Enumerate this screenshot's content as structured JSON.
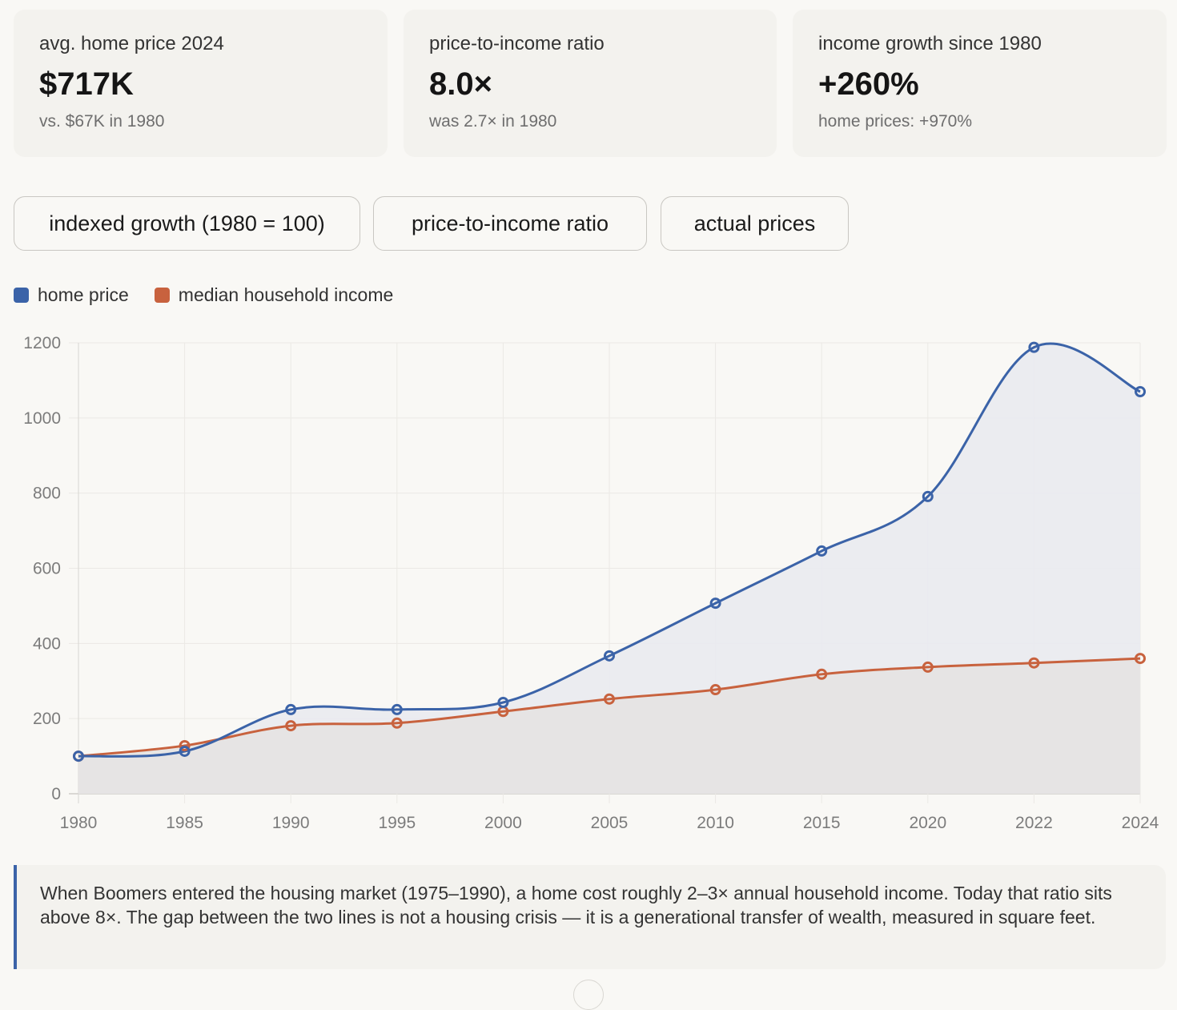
{
  "stats": [
    {
      "label": "avg. home price 2024",
      "value": "$717K",
      "sub": "vs. $67K in 1980"
    },
    {
      "label": "price-to-income ratio",
      "value": "8.0×",
      "sub": "was 2.7× in 1980"
    },
    {
      "label": "income growth since 1980",
      "value": "+260%",
      "sub": "home prices: +970%"
    }
  ],
  "tabs": [
    {
      "label": "indexed growth (1980 = 100)"
    },
    {
      "label": "price-to-income ratio"
    },
    {
      "label": "actual prices"
    }
  ],
  "legend": [
    {
      "label": "home price",
      "color": "#3b63a8"
    },
    {
      "label": "median household income",
      "color": "#c8623e"
    }
  ],
  "note": "When Boomers entered the housing market (1975–1990), a home cost roughly 2–3× annual household income. Today that ratio sits above 8×. The gap between the two lines is not a housing crisis — it is a generational transfer of wealth, measured in square feet.",
  "chart_data": {
    "type": "area",
    "title": "",
    "xlabel": "",
    "ylabel": "",
    "categories": [
      "1980",
      "1985",
      "1990",
      "1995",
      "2000",
      "2005",
      "2010",
      "2015",
      "2020",
      "2022",
      "2024"
    ],
    "ylim": [
      0,
      1200
    ],
    "yticks": [
      0,
      200,
      400,
      600,
      800,
      1000,
      1200
    ],
    "grid": true,
    "legend_position": "top-left",
    "series": [
      {
        "name": "home price",
        "color": "#3b63a8",
        "fill": "#e9eaf0",
        "values": [
          100,
          113,
          224,
          224,
          243,
          367,
          507,
          646,
          791,
          1188,
          1070
        ]
      },
      {
        "name": "median household income",
        "color": "#c8623e",
        "fill": "#e6e3e2",
        "values": [
          100,
          128,
          181,
          188,
          219,
          252,
          277,
          318,
          337,
          348,
          360
        ]
      }
    ]
  }
}
